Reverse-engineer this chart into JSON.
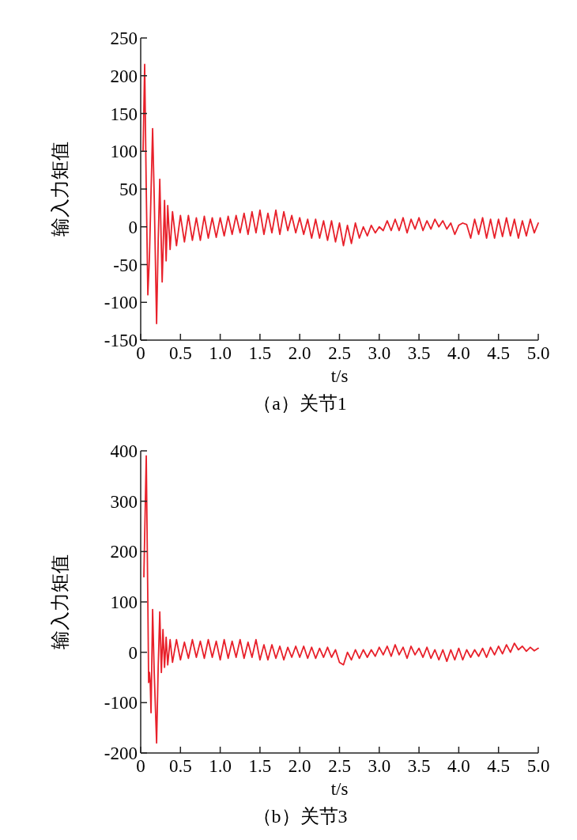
{
  "chart_data": [
    {
      "type": "line",
      "title": "（a）关节1",
      "xlabel": "t/s",
      "ylabel": "输入力矩值",
      "xlim": [
        0,
        5
      ],
      "xticks": [
        0,
        {
          "value": 0.5,
          "label": "0.5"
        },
        {
          "value": 1,
          "label": "1.0"
        },
        {
          "value": 1.5,
          "label": "1.5"
        },
        {
          "value": 2,
          "label": "2.0"
        },
        {
          "value": 2.5,
          "label": "2.5"
        },
        {
          "value": 3,
          "label": "3.0"
        },
        {
          "value": 3.5,
          "label": "3.5"
        },
        {
          "value": 4,
          "label": "4.0"
        },
        {
          "value": 4.5,
          "label": "4.5"
        },
        {
          "value": 5,
          "label": "5.0"
        }
      ],
      "ylim": [
        -150,
        250
      ],
      "yticks": [
        -150,
        -100,
        -50,
        0,
        50,
        100,
        150,
        200,
        250
      ],
      "series": [
        {
          "color": "#e8202a",
          "x": [
            0.03,
            0.05,
            0.07,
            0.09,
            0.11,
            0.15,
            0.17,
            0.2,
            0.22,
            0.24,
            0.27,
            0.3,
            0.32,
            0.34,
            0.37,
            0.4,
            0.45,
            0.5,
            0.55,
            0.6,
            0.65,
            0.7,
            0.75,
            0.8,
            0.85,
            0.9,
            0.95,
            1,
            1.05,
            1.1,
            1.15,
            1.2,
            1.25,
            1.3,
            1.35,
            1.4,
            1.45,
            1.5,
            1.55,
            1.6,
            1.65,
            1.7,
            1.75,
            1.8,
            1.85,
            1.9,
            1.95,
            2,
            2.05,
            2.1,
            2.15,
            2.2,
            2.25,
            2.3,
            2.35,
            2.4,
            2.45,
            2.5,
            2.55,
            2.6,
            2.65,
            2.7,
            2.75,
            2.8,
            2.85,
            2.9,
            2.95,
            3,
            3.05,
            3.1,
            3.15,
            3.2,
            3.25,
            3.3,
            3.35,
            3.4,
            3.45,
            3.5,
            3.55,
            3.6,
            3.65,
            3.7,
            3.75,
            3.8,
            3.85,
            3.9,
            3.95,
            4,
            4.05,
            4.1,
            4.15,
            4.2,
            4.25,
            4.3,
            4.35,
            4.4,
            4.45,
            4.5,
            4.55,
            4.6,
            4.65,
            4.7,
            4.75,
            4.8,
            4.85,
            4.9,
            4.95,
            5
          ],
          "values": [
            100,
            215,
            50,
            -90,
            -40,
            130,
            40,
            -128,
            -20,
            63,
            -73,
            35,
            -45,
            28,
            -30,
            20,
            -25,
            15,
            -20,
            15,
            -18,
            12,
            -18,
            14,
            -15,
            12,
            -14,
            12,
            -12,
            14,
            -10,
            15,
            -8,
            18,
            -10,
            20,
            -8,
            22,
            -10,
            18,
            -8,
            22,
            -10,
            20,
            -5,
            15,
            -8,
            12,
            -10,
            10,
            -15,
            10,
            -15,
            8,
            -18,
            8,
            -20,
            5,
            -25,
            2,
            -22,
            5,
            -15,
            0,
            -12,
            2,
            -8,
            0,
            -5,
            8,
            -5,
            10,
            -5,
            12,
            -8,
            10,
            -3,
            12,
            -5,
            8,
            -3,
            10,
            0,
            8,
            -3,
            5,
            -10,
            2,
            5,
            3,
            -15,
            10,
            -10,
            12,
            -15,
            10,
            -15,
            10,
            -13,
            12,
            -12,
            10,
            -15,
            8,
            -12,
            10,
            -8,
            5
          ]
        }
      ]
    },
    {
      "type": "line",
      "title": "（b）关节3",
      "xlabel": "t/s",
      "ylabel": "输入力矩值",
      "xlim": [
        0,
        5
      ],
      "xticks": [
        0,
        {
          "value": 0.5,
          "label": "0.5"
        },
        {
          "value": 1,
          "label": "1.0"
        },
        {
          "value": 1.5,
          "label": "1.5"
        },
        {
          "value": 2,
          "label": "2.0"
        },
        {
          "value": 2.5,
          "label": "2.5"
        },
        {
          "value": 3,
          "label": "3.0"
        },
        {
          "value": 3.5,
          "label": "3.5"
        },
        {
          "value": 4,
          "label": "4.0"
        },
        {
          "value": 4.5,
          "label": "4.5"
        },
        {
          "value": 5,
          "label": "5.0"
        }
      ],
      "ylim": [
        -200,
        400
      ],
      "yticks": [
        -200,
        -100,
        0,
        100,
        200,
        300,
        400
      ],
      "series": [
        {
          "color": "#e8202a",
          "x": [
            0.04,
            0.07,
            0.09,
            0.1,
            0.11,
            0.12,
            0.13,
            0.15,
            0.17,
            0.2,
            0.22,
            0.24,
            0.26,
            0.28,
            0.3,
            0.32,
            0.34,
            0.37,
            0.4,
            0.45,
            0.5,
            0.55,
            0.6,
            0.65,
            0.7,
            0.75,
            0.8,
            0.85,
            0.9,
            0.95,
            1,
            1.05,
            1.1,
            1.15,
            1.2,
            1.25,
            1.3,
            1.35,
            1.4,
            1.45,
            1.5,
            1.55,
            1.6,
            1.65,
            1.7,
            1.75,
            1.8,
            1.85,
            1.9,
            1.95,
            2,
            2.05,
            2.1,
            2.15,
            2.2,
            2.25,
            2.3,
            2.35,
            2.4,
            2.45,
            2.5,
            2.55,
            2.6,
            2.65,
            2.7,
            2.75,
            2.8,
            2.85,
            2.9,
            2.95,
            3,
            3.05,
            3.1,
            3.15,
            3.2,
            3.25,
            3.3,
            3.35,
            3.4,
            3.45,
            3.5,
            3.55,
            3.6,
            3.65,
            3.7,
            3.75,
            3.8,
            3.85,
            3.9,
            3.95,
            4,
            4.05,
            4.1,
            4.15,
            4.2,
            4.25,
            4.3,
            4.35,
            4.4,
            4.45,
            4.5,
            4.55,
            4.6,
            4.65,
            4.7,
            4.75,
            4.8,
            4.85,
            4.9,
            4.95,
            5
          ],
          "values": [
            150,
            390,
            100,
            -60,
            -40,
            -60,
            -120,
            85,
            -40,
            -180,
            -30,
            80,
            -40,
            45,
            -30,
            30,
            -25,
            25,
            -20,
            25,
            -15,
            20,
            -12,
            25,
            -10,
            22,
            -12,
            25,
            -10,
            22,
            -15,
            25,
            -12,
            22,
            -10,
            25,
            -12,
            20,
            -10,
            25,
            -15,
            15,
            -15,
            15,
            -12,
            12,
            -15,
            10,
            -10,
            12,
            -10,
            12,
            -12,
            10,
            -12,
            8,
            -10,
            10,
            -10,
            5,
            -20,
            -25,
            0,
            -15,
            5,
            -12,
            5,
            -10,
            5,
            -8,
            10,
            -5,
            12,
            -8,
            15,
            -5,
            10,
            -12,
            12,
            -5,
            8,
            -10,
            10,
            -12,
            5,
            -15,
            5,
            -18,
            5,
            -15,
            8,
            -15,
            5,
            -10,
            5,
            -8,
            8,
            -10,
            10,
            -5,
            12,
            -3,
            15,
            0,
            18,
            5,
            12,
            2,
            10,
            3,
            8
          ]
        }
      ]
    }
  ]
}
